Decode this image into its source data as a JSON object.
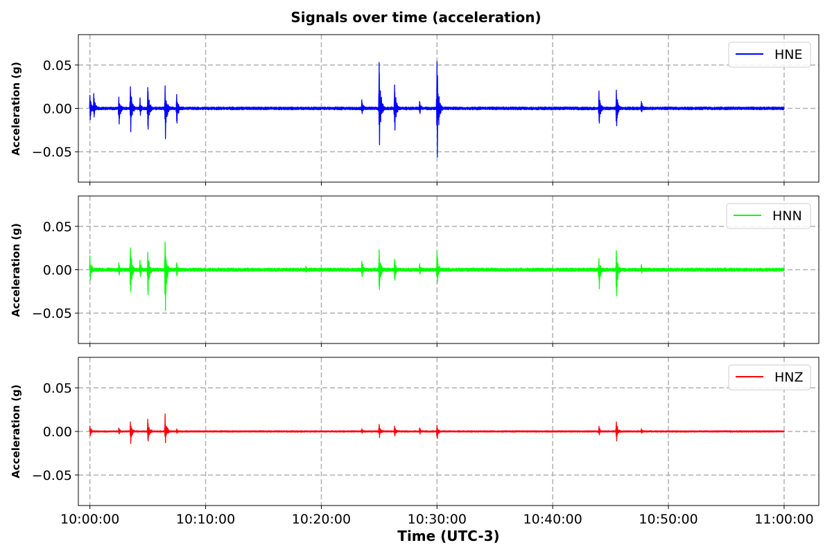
{
  "chart_data": {
    "type": "line",
    "title": "Signals over time (acceleration)",
    "xlabel": "Time (UTC-3)",
    "ylabel": "Acceleration (g)",
    "x_ticks": [
      "10:00:00",
      "10:10:00",
      "10:20:00",
      "10:30:00",
      "10:40:00",
      "10:50:00",
      "11:00:00"
    ],
    "x_range": [
      "09:59:00",
      "11:03:00"
    ],
    "ylim": [
      -0.085,
      0.085
    ],
    "y_ticks": [
      0.05,
      0.0,
      -0.05
    ],
    "y_tick_labels": [
      "0.05",
      "0.00",
      "−0.05"
    ],
    "grid": true,
    "legend_position": "top-right",
    "panels": [
      {
        "series_name": "HNE",
        "color": "#0000ff",
        "noise": 0.0012,
        "bursts": [
          {
            "t": "10:00:00",
            "max": 0.015,
            "min": -0.013
          },
          {
            "t": "10:00:20",
            "max": 0.017,
            "min": -0.01
          },
          {
            "t": "10:02:30",
            "max": 0.013,
            "min": -0.018
          },
          {
            "t": "10:03:30",
            "max": 0.025,
            "min": -0.027
          },
          {
            "t": "10:04:20",
            "max": 0.012,
            "min": -0.008
          },
          {
            "t": "10:05:00",
            "max": 0.024,
            "min": -0.024
          },
          {
            "t": "10:06:30",
            "max": 0.026,
            "min": -0.035
          },
          {
            "t": "10:07:30",
            "max": 0.016,
            "min": -0.017
          },
          {
            "t": "10:23:30",
            "max": 0.01,
            "min": -0.006
          },
          {
            "t": "10:25:00",
            "max": 0.053,
            "min": -0.042
          },
          {
            "t": "10:26:20",
            "max": 0.027,
            "min": -0.025
          },
          {
            "t": "10:28:30",
            "max": 0.008,
            "min": -0.006
          },
          {
            "t": "10:30:00",
            "max": 0.054,
            "min": -0.056
          },
          {
            "t": "10:44:00",
            "max": 0.02,
            "min": -0.017
          },
          {
            "t": "10:45:30",
            "max": 0.021,
            "min": -0.02
          },
          {
            "t": "10:47:40",
            "max": 0.008,
            "min": -0.004
          }
        ]
      },
      {
        "series_name": "HNN",
        "color": "#00ff00",
        "noise": 0.0014,
        "bursts": [
          {
            "t": "10:00:00",
            "max": 0.016,
            "min": -0.012
          },
          {
            "t": "10:02:30",
            "max": 0.008,
            "min": -0.006
          },
          {
            "t": "10:03:30",
            "max": 0.025,
            "min": -0.025
          },
          {
            "t": "10:04:20",
            "max": 0.011,
            "min": -0.008
          },
          {
            "t": "10:05:00",
            "max": 0.02,
            "min": -0.029
          },
          {
            "t": "10:06:30",
            "max": 0.032,
            "min": -0.047
          },
          {
            "t": "10:07:30",
            "max": 0.008,
            "min": -0.007
          },
          {
            "t": "10:18:40",
            "max": 0.004,
            "min": -0.003
          },
          {
            "t": "10:23:30",
            "max": 0.01,
            "min": -0.008
          },
          {
            "t": "10:25:00",
            "max": 0.023,
            "min": -0.023
          },
          {
            "t": "10:26:20",
            "max": 0.012,
            "min": -0.012
          },
          {
            "t": "10:28:30",
            "max": 0.007,
            "min": -0.005
          },
          {
            "t": "10:30:00",
            "max": 0.02,
            "min": -0.015
          },
          {
            "t": "10:44:00",
            "max": 0.013,
            "min": -0.022
          },
          {
            "t": "10:45:30",
            "max": 0.022,
            "min": -0.03
          },
          {
            "t": "10:47:40",
            "max": 0.006,
            "min": -0.004
          }
        ]
      },
      {
        "series_name": "HNZ",
        "color": "#ff0000",
        "noise": 0.0006,
        "bursts": [
          {
            "t": "10:00:00",
            "max": 0.006,
            "min": -0.005
          },
          {
            "t": "10:02:30",
            "max": 0.004,
            "min": -0.003
          },
          {
            "t": "10:03:30",
            "max": 0.011,
            "min": -0.014
          },
          {
            "t": "10:05:00",
            "max": 0.014,
            "min": -0.011
          },
          {
            "t": "10:06:30",
            "max": 0.02,
            "min": -0.013
          },
          {
            "t": "10:07:30",
            "max": 0.003,
            "min": -0.002
          },
          {
            "t": "10:23:30",
            "max": 0.003,
            "min": -0.002
          },
          {
            "t": "10:25:00",
            "max": 0.008,
            "min": -0.007
          },
          {
            "t": "10:26:20",
            "max": 0.006,
            "min": -0.005
          },
          {
            "t": "10:28:30",
            "max": 0.004,
            "min": -0.003
          },
          {
            "t": "10:30:00",
            "max": 0.007,
            "min": -0.008
          },
          {
            "t": "10:44:00",
            "max": 0.006,
            "min": -0.004
          },
          {
            "t": "10:45:30",
            "max": 0.011,
            "min": -0.011
          },
          {
            "t": "10:47:40",
            "max": 0.003,
            "min": -0.002
          }
        ]
      }
    ]
  }
}
